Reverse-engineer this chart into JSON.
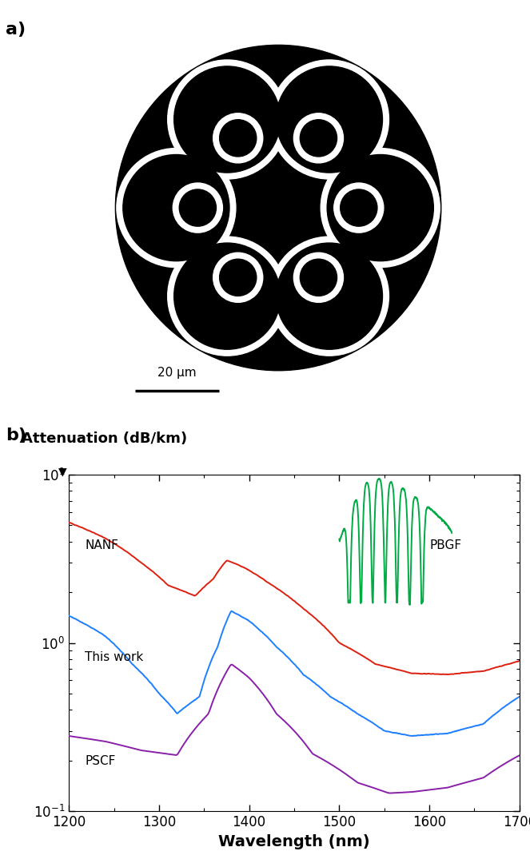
{
  "fig_width": 6.63,
  "fig_height": 10.8,
  "panel_a_bg": "#b4b4b4",
  "fiber_outline_color": "#ffffff",
  "fiber_fill_color": "#000000",
  "scale_bar_text": "20 μm",
  "panel_b_title": "Attenuation (dB/km)",
  "panel_b_xlabel": "Wavelength (nm)",
  "xlim": [
    1200,
    1700
  ],
  "colors": {
    "this_work": "#1e7fff",
    "NANF": "#dd2010",
    "PSCF": "#8820a8",
    "PBGF": "#00aa44"
  },
  "labels": {
    "this_work": "This work",
    "NANF": "NANF",
    "PSCF": "PSCF",
    "PBGF": "PBGF"
  }
}
